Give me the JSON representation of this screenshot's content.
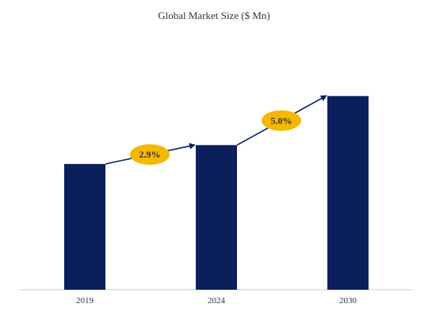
{
  "chart_data": {
    "type": "bar",
    "title": "Global Market Size ($ Mn)",
    "categories": [
      "2019",
      "2024",
      "2030"
    ],
    "values": [
      100,
      115,
      154
    ],
    "ylim": [
      0,
      175
    ],
    "xlabel": "",
    "ylabel": "",
    "grid": false,
    "legend": "none",
    "growth_labels": [
      {
        "from": "2019",
        "to": "2024",
        "label": "2.9%"
      },
      {
        "from": "2024",
        "to": "2030",
        "label": "5.0%"
      }
    ]
  },
  "colors": {
    "bar": "#0b1f5c",
    "arrow": "#0b1f5c",
    "badge": "#f5b800",
    "baseline": "#cccccc"
  }
}
